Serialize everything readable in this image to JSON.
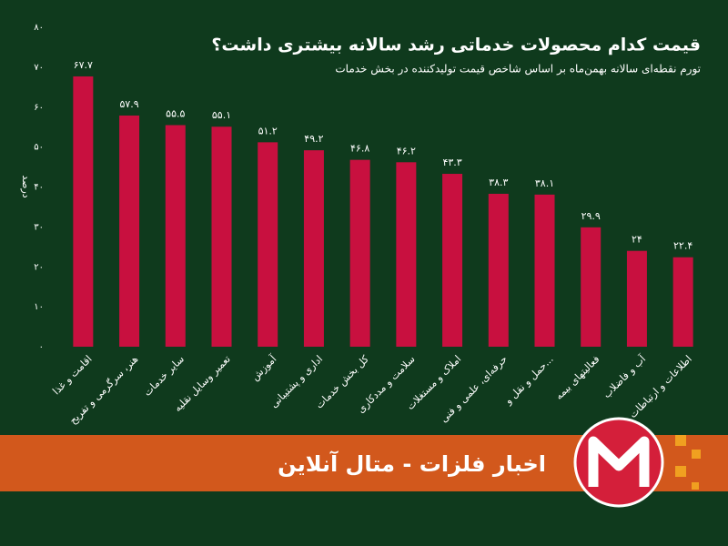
{
  "chart_data": {
    "type": "bar",
    "title": "قیمت کدام محصولات خدماتی رشد سالانه بیشتری داشت؟",
    "subtitle": "تورم نقطه‌ای سالانه بهمن‌ماه بر اساس شاخص قیمت تولیدکننده در بخش خدمات",
    "y_label": "درصد",
    "categories": [
      "اقامت و غذا",
      "هنر، سرگرمی و تفریح",
      "سایر خدمات",
      "تعمیر وسایل نقلیه",
      "آموزش",
      "اداری و پشتیبانی",
      "کل بخش خدمات",
      "سلامت و مددکاری",
      "املاک و مستغلات",
      "حرفه‌ای، علمی و فنی",
      "حمل و نقل و...",
      "فعالیتهای بیمه",
      "آب و فاضلاب",
      "اطلاعات و ارتباطات"
    ],
    "values": [
      67.7,
      57.9,
      55.5,
      55.1,
      51.2,
      49.2,
      46.8,
      46.2,
      43.3,
      38.3,
      38.1,
      29.9,
      24,
      22.4
    ],
    "value_labels": [
      "۶۷.۷",
      "۵۷.۹",
      "۵۵.۵",
      "۵۵.۱",
      "۵۱.۲",
      "۴۹.۲",
      "۴۶.۸",
      "۴۶.۲",
      "۴۳.۳",
      "۳۸.۳",
      "۳۸.۱",
      "۲۹.۹",
      "۲۴",
      "۲۲.۴"
    ],
    "color": "#c8103f",
    "ylim": [
      0,
      80
    ],
    "yticks": [
      {
        "value": 0,
        "label": "۰"
      },
      {
        "value": 10,
        "label": "۱۰"
      },
      {
        "value": 20,
        "label": "۲۰"
      },
      {
        "value": 30,
        "label": "۳۰"
      },
      {
        "value": 40,
        "label": "۴۰"
      },
      {
        "value": 50,
        "label": "۵۰"
      },
      {
        "value": 60,
        "label": "۶۰"
      },
      {
        "value": 70,
        "label": "۷۰"
      },
      {
        "value": 80,
        "label": "۸۰"
      }
    ],
    "grid": false
  },
  "banner": {
    "text": "اخبار فلزات - متال آنلاین"
  }
}
